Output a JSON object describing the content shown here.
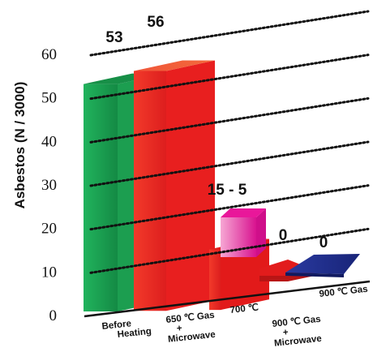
{
  "chart_data": {
    "type": "bar",
    "ylabel": "Asbestos (N / 3000)",
    "ylim": [
      0,
      60
    ],
    "yticks": [
      "0",
      "10",
      "20",
      "30",
      "40",
      "50",
      "60"
    ],
    "grid": "dotted",
    "categories": [
      [
        "Before",
        "Heating"
      ],
      [
        "650 ℃ Gas",
        "+",
        "Microwave"
      ],
      [
        "700 ℃"
      ],
      [
        "900 ℃ Gas",
        "+",
        "Microwave"
      ],
      [
        "900 ℃ Gas"
      ]
    ],
    "values": [
      53,
      56,
      15,
      0,
      0
    ],
    "data_labels": [
      "53",
      "56",
      "15 - 5",
      "0",
      "0"
    ],
    "inner_values": [
      null,
      null,
      5,
      null,
      null
    ],
    "colors": {
      "bar1": "#1a9e52",
      "bar2": "#ee2a2a",
      "bar3": "#ee2a2a",
      "bar3_inner": "#e0159a",
      "bar4": "#ee2a2a",
      "bar5": "#1d2a8a"
    }
  }
}
